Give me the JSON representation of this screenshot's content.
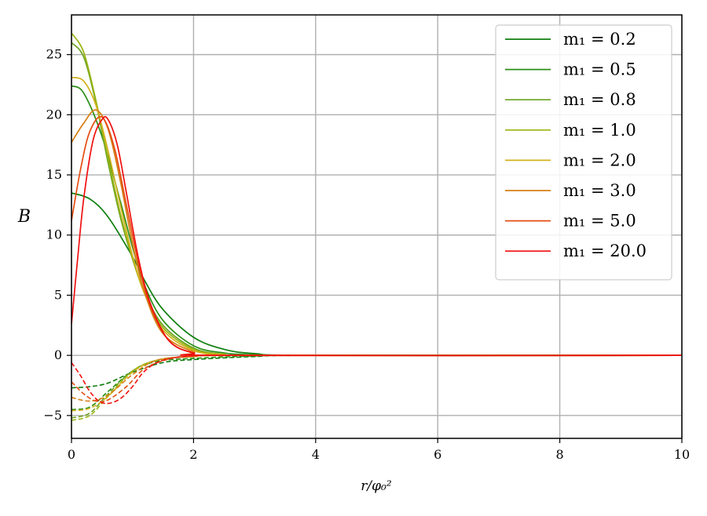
{
  "chart_data": {
    "type": "line",
    "title": "",
    "xlabel": "r/φ₀²",
    "ylabel": "B",
    "xlim": [
      0,
      10
    ],
    "ylim": [
      -6.9,
      28.3
    ],
    "x_ticks": [
      0,
      2,
      4,
      6,
      8,
      10
    ],
    "y_ticks": [
      -5,
      0,
      5,
      10,
      15,
      20,
      25
    ],
    "x_tick_labels": [
      "0",
      "2",
      "4",
      "6",
      "8",
      "10"
    ],
    "y_tick_labels": [
      "−5",
      "0",
      "5",
      "10",
      "15",
      "20",
      "25"
    ],
    "grid": true,
    "legend_position": "top-right",
    "series": [
      {
        "name": "m₁ = 0.2",
        "color": "#0e7e0e",
        "solid": [
          [
            0,
            13.5
          ],
          [
            0.3,
            13.0
          ],
          [
            0.6,
            11.5
          ],
          [
            1.0,
            8.2
          ],
          [
            1.2,
            6.2
          ],
          [
            1.5,
            3.8
          ],
          [
            2.0,
            1.5
          ],
          [
            2.5,
            0.5
          ],
          [
            3.0,
            0.15
          ],
          [
            4.0,
            0
          ],
          [
            10,
            0
          ]
        ],
        "dashed": [
          [
            0,
            -2.7
          ],
          [
            0.3,
            -2.6
          ],
          [
            0.6,
            -2.3
          ],
          [
            1.0,
            -1.4
          ],
          [
            1.5,
            -0.6
          ],
          [
            2.0,
            -0.35
          ],
          [
            3.0,
            -0.1
          ],
          [
            4.0,
            0
          ],
          [
            10,
            0
          ]
        ]
      },
      {
        "name": "m₁ = 0.5",
        "color": "#2a8f15",
        "solid": [
          [
            0,
            22.4
          ],
          [
            0.2,
            21.8
          ],
          [
            0.5,
            18.2
          ],
          [
            0.8,
            12.8
          ],
          [
            1.0,
            9.0
          ],
          [
            1.2,
            5.8
          ],
          [
            1.5,
            2.9
          ],
          [
            2.0,
            0.8
          ],
          [
            2.5,
            0.2
          ],
          [
            3.0,
            0.05
          ],
          [
            4.0,
            0
          ],
          [
            10,
            0
          ]
        ],
        "dashed": [
          [
            0,
            -4.5
          ],
          [
            0.3,
            -4.3
          ],
          [
            0.6,
            -3.0
          ],
          [
            1.0,
            -1.3
          ],
          [
            1.4,
            -0.5
          ],
          [
            2.0,
            -0.25
          ],
          [
            3.0,
            -0.05
          ],
          [
            4.0,
            0
          ],
          [
            10,
            0
          ]
        ]
      },
      {
        "name": "m₁ = 0.8",
        "color": "#6ca320",
        "solid": [
          [
            0,
            26.0
          ],
          [
            0.2,
            24.8
          ],
          [
            0.4,
            21.0
          ],
          [
            0.6,
            16.0
          ],
          [
            0.8,
            11.5
          ],
          [
            1.0,
            8.0
          ],
          [
            1.2,
            5.2
          ],
          [
            1.5,
            2.5
          ],
          [
            2.0,
            0.6
          ],
          [
            2.5,
            0.1
          ],
          [
            3.0,
            0
          ],
          [
            10,
            0
          ]
        ],
        "dashed": [
          [
            0,
            -5.2
          ],
          [
            0.3,
            -4.8
          ],
          [
            0.6,
            -3.2
          ],
          [
            1.0,
            -1.3
          ],
          [
            1.4,
            -0.4
          ],
          [
            2.0,
            -0.1
          ],
          [
            3.0,
            0
          ],
          [
            10,
            0
          ]
        ]
      },
      {
        "name": "m₁ = 1.0",
        "color": "#9bb515",
        "solid": [
          [
            0,
            26.8
          ],
          [
            0.2,
            25.2
          ],
          [
            0.4,
            21.2
          ],
          [
            0.6,
            16.4
          ],
          [
            0.8,
            11.8
          ],
          [
            1.0,
            8.1
          ],
          [
            1.2,
            5.1
          ],
          [
            1.5,
            2.3
          ],
          [
            2.0,
            0.5
          ],
          [
            2.5,
            0.1
          ],
          [
            3.0,
            0
          ],
          [
            10,
            0
          ]
        ],
        "dashed": [
          [
            0,
            -5.4
          ],
          [
            0.3,
            -5.0
          ],
          [
            0.6,
            -3.4
          ],
          [
            1.0,
            -1.3
          ],
          [
            1.4,
            -0.4
          ],
          [
            2.0,
            -0.1
          ],
          [
            3.0,
            0
          ],
          [
            10,
            0
          ]
        ]
      },
      {
        "name": "m₁ = 2.0",
        "color": "#d2b21d",
        "solid": [
          [
            0,
            23.1
          ],
          [
            0.2,
            22.8
          ],
          [
            0.4,
            20.8
          ],
          [
            0.6,
            17.0
          ],
          [
            0.8,
            12.5
          ],
          [
            1.0,
            8.3
          ],
          [
            1.2,
            5.1
          ],
          [
            1.5,
            2.1
          ],
          [
            2.0,
            0.4
          ],
          [
            2.5,
            0.05
          ],
          [
            3.0,
            0
          ],
          [
            10,
            0
          ]
        ],
        "dashed": [
          [
            0,
            -4.6
          ],
          [
            0.3,
            -4.4
          ],
          [
            0.6,
            -3.4
          ],
          [
            1.0,
            -1.4
          ],
          [
            1.4,
            -0.4
          ],
          [
            2.0,
            -0.1
          ],
          [
            3.0,
            0
          ],
          [
            10,
            0
          ]
        ]
      },
      {
        "name": "m₁ = 3.0",
        "color": "#d57f14",
        "solid": [
          [
            0,
            17.7
          ],
          [
            0.2,
            19.3
          ],
          [
            0.4,
            20.4
          ],
          [
            0.6,
            18.8
          ],
          [
            0.8,
            14.5
          ],
          [
            1.0,
            9.3
          ],
          [
            1.2,
            5.2
          ],
          [
            1.5,
            1.8
          ],
          [
            2.0,
            0.3
          ],
          [
            2.5,
            0
          ],
          [
            10,
            0
          ]
        ],
        "dashed": [
          [
            0,
            -3.5
          ],
          [
            0.3,
            -3.8
          ],
          [
            0.6,
            -3.3
          ],
          [
            1.0,
            -1.6
          ],
          [
            1.4,
            -0.4
          ],
          [
            2.0,
            -0.1
          ],
          [
            3.0,
            0
          ],
          [
            10,
            0
          ]
        ]
      },
      {
        "name": "m₁ = 5.0",
        "color": "#e54c12",
        "solid": [
          [
            0,
            11.2
          ],
          [
            0.15,
            15.5
          ],
          [
            0.3,
            18.6
          ],
          [
            0.5,
            19.8
          ],
          [
            0.7,
            17.3
          ],
          [
            0.9,
            12.5
          ],
          [
            1.1,
            7.6
          ],
          [
            1.3,
            4.0
          ],
          [
            1.6,
            1.2
          ],
          [
            2.0,
            0.2
          ],
          [
            2.5,
            0
          ],
          [
            10,
            0
          ]
        ],
        "dashed": [
          [
            0,
            -2.2
          ],
          [
            0.2,
            -3.2
          ],
          [
            0.4,
            -3.8
          ],
          [
            0.6,
            -3.7
          ],
          [
            0.9,
            -2.6
          ],
          [
            1.2,
            -1.1
          ],
          [
            1.6,
            -0.3
          ],
          [
            2.0,
            -0.05
          ],
          [
            3.0,
            0
          ],
          [
            10,
            0
          ]
        ]
      },
      {
        "name": "m₁ = 20.0",
        "color": "#f01010",
        "solid": [
          [
            0,
            2.6
          ],
          [
            0.1,
            8.0
          ],
          [
            0.2,
            13.0
          ],
          [
            0.35,
            17.8
          ],
          [
            0.5,
            19.6
          ],
          [
            0.6,
            19.6
          ],
          [
            0.75,
            17.5
          ],
          [
            0.9,
            13.5
          ],
          [
            1.1,
            8.0
          ],
          [
            1.3,
            4.2
          ],
          [
            1.6,
            1.2
          ],
          [
            2.0,
            0.2
          ],
          [
            2.5,
            0
          ],
          [
            10,
            0
          ]
        ],
        "dashed": [
          [
            0,
            -0.6
          ],
          [
            0.15,
            -1.7
          ],
          [
            0.3,
            -3.0
          ],
          [
            0.45,
            -3.8
          ],
          [
            0.6,
            -4.0
          ],
          [
            0.8,
            -3.6
          ],
          [
            1.0,
            -2.6
          ],
          [
            1.2,
            -1.3
          ],
          [
            1.5,
            -0.4
          ],
          [
            2.0,
            -0.05
          ],
          [
            3.0,
            0
          ],
          [
            10,
            0
          ]
        ]
      }
    ]
  }
}
